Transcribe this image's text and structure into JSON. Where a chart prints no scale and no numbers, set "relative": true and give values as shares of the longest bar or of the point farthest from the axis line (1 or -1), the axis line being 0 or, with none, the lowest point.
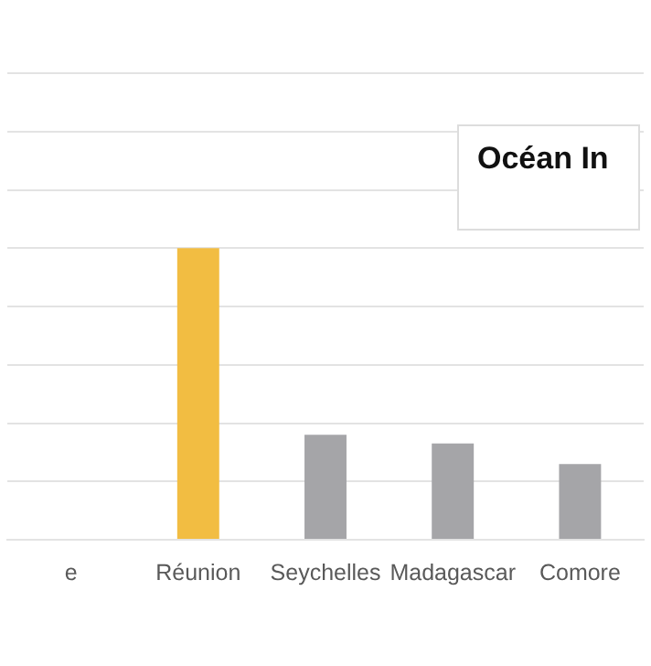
{
  "chart_data": {
    "type": "bar",
    "relative": true,
    "grid": "y",
    "categories": [
      "e",
      "Réunion",
      "Seychelles",
      "Madagascar",
      "Comore"
    ],
    "values": [
      null,
      1,
      0.36,
      0.33,
      0.26
    ],
    "colors": [
      "#a5a5a8",
      "#f2bd42",
      "#a5a5a8",
      "#a5a5a8",
      "#a5a5a8"
    ],
    "annotations": [
      "Océan In"
    ]
  }
}
